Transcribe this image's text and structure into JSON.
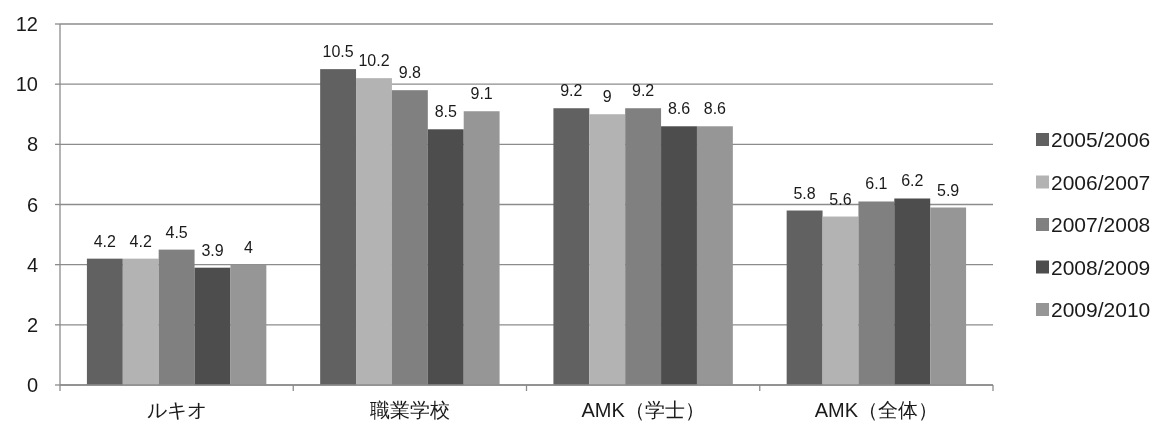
{
  "chart_data": {
    "type": "bar",
    "categories": [
      "ルキオ",
      "職業学校",
      "AMK（学士）",
      "AMK（全体）"
    ],
    "series": [
      {
        "name": "2005/2006",
        "color": "#616161",
        "values": [
          4.2,
          10.5,
          9.2,
          5.8
        ]
      },
      {
        "name": "2006/2007",
        "color": "#b3b3b3",
        "values": [
          4.2,
          10.2,
          9,
          5.6
        ]
      },
      {
        "name": "2007/2008",
        "color": "#808080",
        "values": [
          4.5,
          9.8,
          9.2,
          6.1
        ]
      },
      {
        "name": "2008/2009",
        "color": "#4d4d4d",
        "values": [
          3.9,
          8.5,
          8.6,
          6.2
        ]
      },
      {
        "name": "2009/2010",
        "color": "#969696",
        "values": [
          4,
          9.1,
          8.6,
          5.9
        ]
      }
    ],
    "ylim": [
      0,
      12
    ],
    "yticks": [
      0,
      2,
      4,
      6,
      8,
      10,
      12
    ],
    "grid": "y",
    "legend": "right",
    "data_labels": true
  }
}
